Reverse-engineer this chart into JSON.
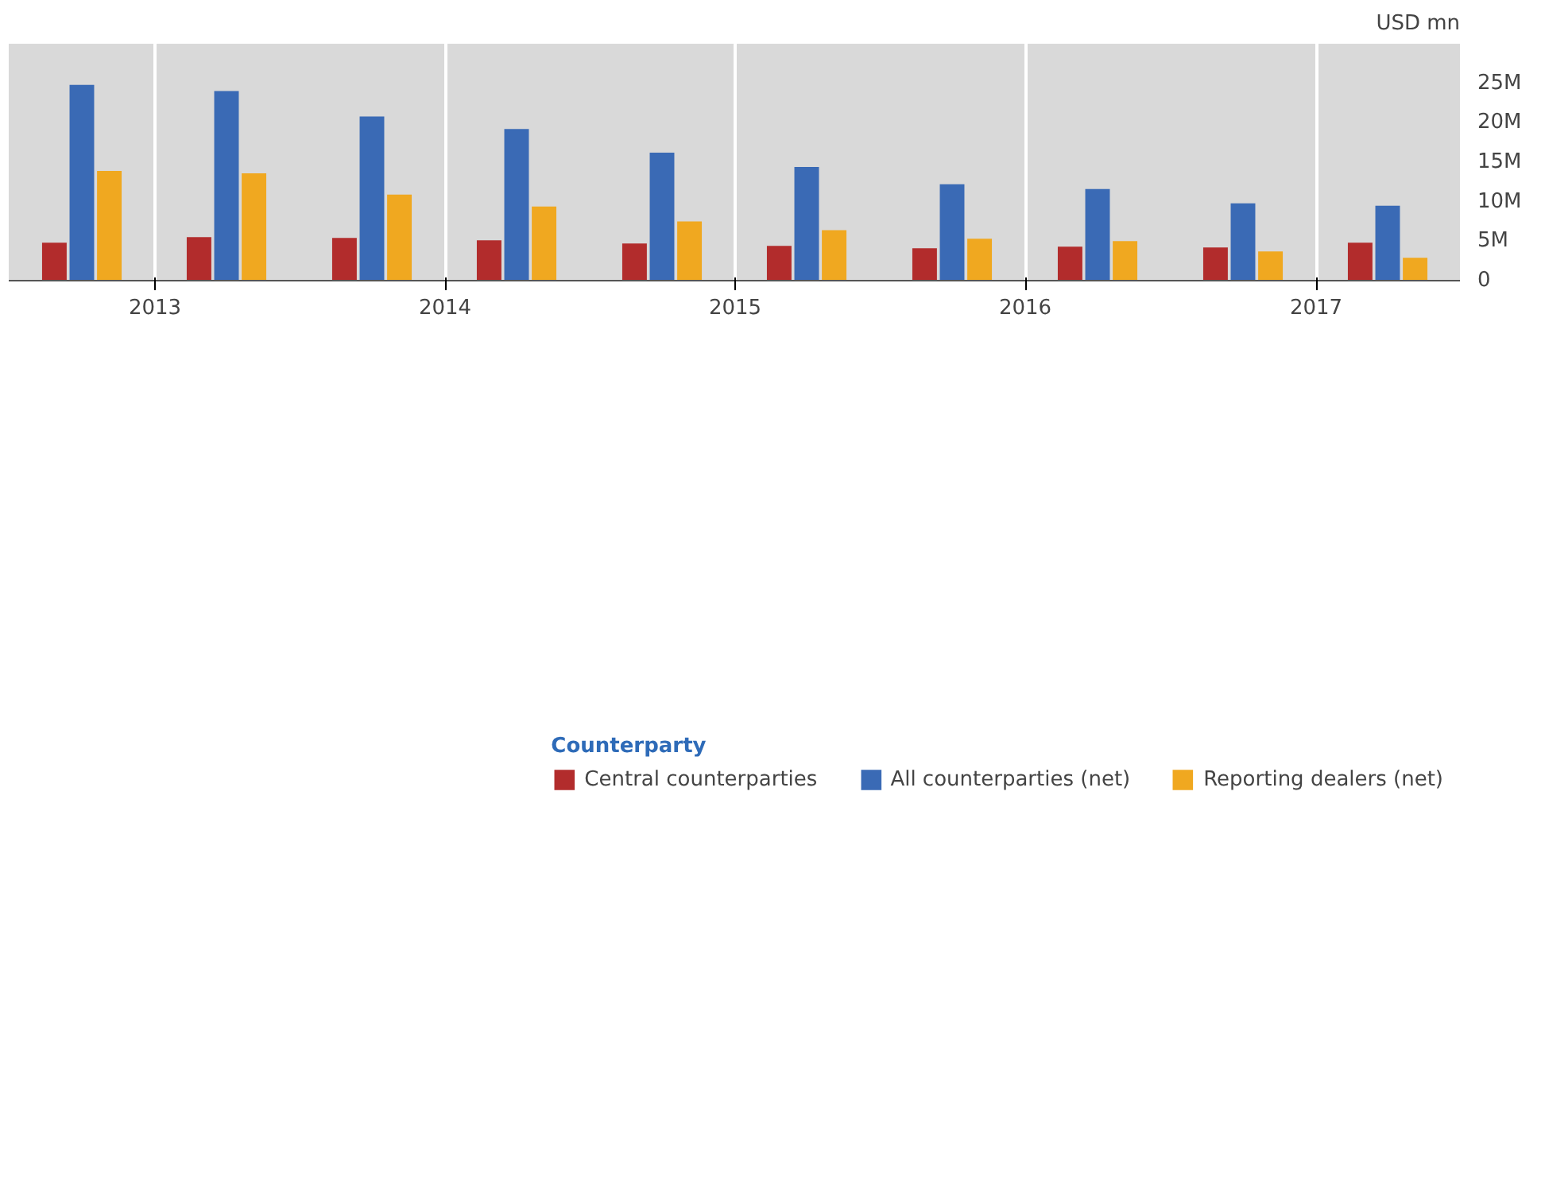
{
  "chart_data": {
    "type": "bar",
    "ylabel": "USD mn",
    "legend_title": "Counterparty",
    "x": [
      "2012-10-01",
      "2013-04-01",
      "2013-10-01",
      "2014-04-01",
      "2014-10-01",
      "2015-04-01",
      "2015-10-01",
      "2016-04-01",
      "2016-10-01",
      "2017-04-01"
    ],
    "series": [
      {
        "name": "Central counterparties",
        "color": "#b22c2c",
        "values": [
          4800000,
          5500000,
          5400000,
          5100000,
          4700000,
          4400000,
          4100000,
          4300000,
          4200000,
          4800000
        ]
      },
      {
        "name": "All counterparties (net)",
        "color": "#3a6ab5",
        "values": [
          24800000,
          24000000,
          20800000,
          19200000,
          16200000,
          14400000,
          12200000,
          11600000,
          9800000,
          9500000
        ]
      },
      {
        "name": "Reporting dealers (net)",
        "color": "#f0a820",
        "values": [
          13900000,
          13600000,
          10900000,
          9400000,
          7500000,
          6400000,
          5300000,
          5000000,
          3700000,
          2900000
        ]
      }
    ],
    "xlim": [
      "2012-07-01",
      "2017-07-01"
    ],
    "xticks": [
      "2013",
      "2014",
      "2015",
      "2016",
      "2017"
    ],
    "ylim": [
      0,
      30000000
    ],
    "yticks": [
      0,
      {
        "value": 5000000,
        "label": "5M"
      },
      {
        "value": 10000000,
        "label": "10M"
      },
      {
        "value": 15000000,
        "label": "15M"
      },
      {
        "value": 20000000,
        "label": "20M"
      },
      {
        "value": 25000000,
        "label": "25M"
      }
    ],
    "grid": "x",
    "legend": "bottom"
  }
}
